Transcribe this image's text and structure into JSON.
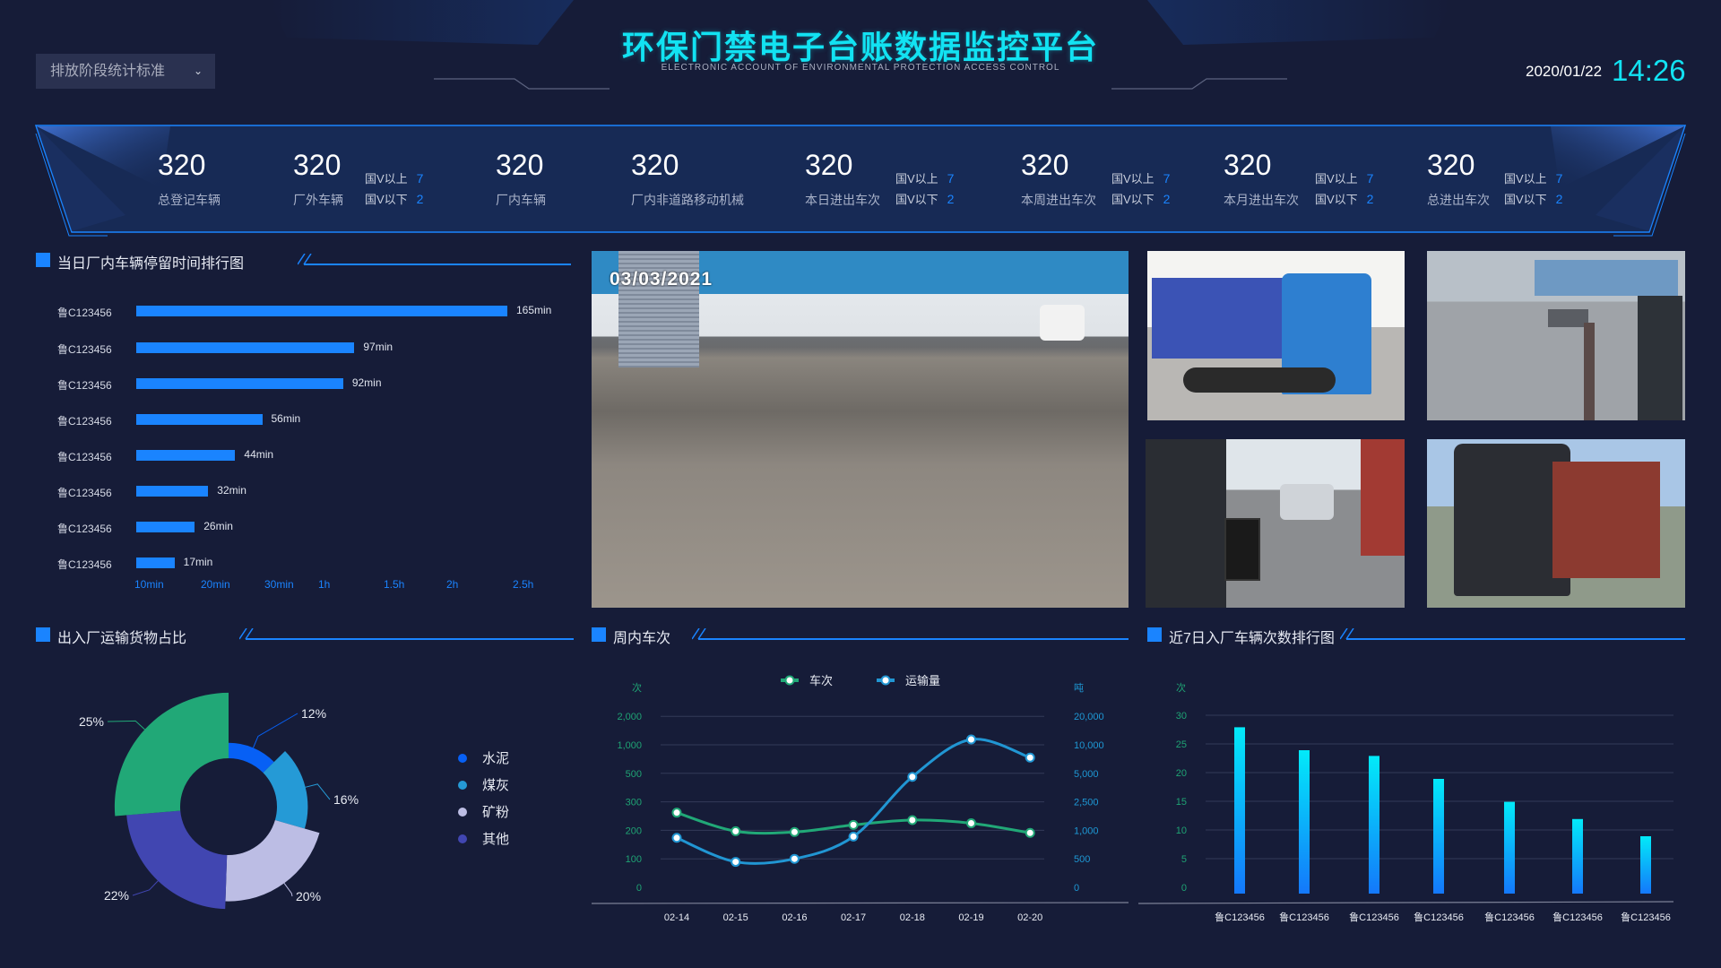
{
  "header": {
    "title": "环保门禁电子台账数据监控平台",
    "subtitle": "ELECTRONIC ACCOUNT OF ENVIRONMENTAL PROTECTION ACCESS CONTROL",
    "date": "2020/01/22",
    "time": "14:26",
    "dropdown": {
      "selected": "排放阶段统计标准",
      "icon": "chevron-down-icon"
    }
  },
  "stats": [
    {
      "value": "320",
      "label": "总登记车辆"
    },
    {
      "value": "320",
      "label": "厂外车辆",
      "above_label": "国V以上",
      "above": "7",
      "below_label": "国V以下",
      "below": "2"
    },
    {
      "value": "320",
      "label": "厂内车辆"
    },
    {
      "value": "320",
      "label": "厂内非道路移动机械"
    },
    {
      "value": "320",
      "label": "本日进出车次",
      "above_label": "国V以上",
      "above": "7",
      "below_label": "国V以下",
      "below": "2"
    },
    {
      "value": "320",
      "label": "本周进出车次",
      "above_label": "国V以上",
      "above": "7",
      "below_label": "国V以下",
      "below": "2"
    },
    {
      "value": "320",
      "label": "本月进出车次",
      "above_label": "国V以上",
      "above": "7",
      "below_label": "国V以下",
      "below": "2"
    },
    {
      "value": "320",
      "label": "总进出车次",
      "above_label": "国V以上",
      "above": "7",
      "below_label": "国V以下",
      "below": "2"
    }
  ],
  "video": {
    "timestamp": "03/03/2021"
  },
  "colors": {
    "background": "#161c38",
    "accent": "#1a84ff",
    "title": "#12e2f2",
    "green": "#21a877",
    "blue_line": "#2196d3"
  },
  "chart_data": [
    {
      "type": "bar",
      "orientation": "horizontal",
      "title": "当日厂内车辆停留时间排行图",
      "categories": [
        "鲁C123456",
        "鲁C123456",
        "鲁C123456",
        "鲁C123456",
        "鲁C123456",
        "鲁C123456",
        "鲁C123456",
        "鲁C123456"
      ],
      "values": [
        165,
        97,
        92,
        56,
        44,
        32,
        26,
        17
      ],
      "value_labels": [
        "165min",
        "97min",
        "92min",
        "56min",
        "44min",
        "32min",
        "26min",
        "17min"
      ],
      "x_tick_labels": [
        "10min",
        "20min",
        "30min",
        "1h",
        "1.5h",
        "2h",
        "2.5h"
      ],
      "unit": "min"
    },
    {
      "type": "pie",
      "title": "出入厂运输货物占比",
      "rose": true,
      "slices": [
        {
          "name": "水泥",
          "value": 12,
          "label": "12%",
          "color": "#0760f5"
        },
        {
          "name": "煤灰",
          "value": 16,
          "label": "16%",
          "color": "#259ad6"
        },
        {
          "name": "矿粉",
          "value": 20,
          "label": "20%",
          "color": "#bcbde4"
        },
        {
          "name": "其他",
          "value": 22,
          "label": "22%",
          "color": "#4146b1"
        },
        {
          "name": "",
          "value": 25,
          "label": "25%",
          "color": "#21a877"
        }
      ],
      "legend": [
        "水泥",
        "煤灰",
        "矿粉",
        "其他"
      ],
      "legend_placement": "right"
    },
    {
      "type": "line",
      "title": "周内车次",
      "x": [
        "02-14",
        "02-15",
        "02-16",
        "02-17",
        "02-18",
        "02-19",
        "02-20"
      ],
      "y_left": {
        "unit": "次",
        "ticks": [
          0,
          100,
          200,
          300,
          500,
          1000,
          2000
        ],
        "tick_labels": [
          "0",
          "100",
          "200",
          "300",
          "500",
          "1,000",
          "2,000"
        ]
      },
      "y_right": {
        "unit": "吨",
        "ticks": [
          0,
          500,
          1000,
          2500,
          5000,
          10000,
          20000
        ],
        "tick_labels": [
          "0",
          "500",
          "1,000",
          "2,500",
          "5,000",
          "10,000",
          "20,000"
        ]
      },
      "series": [
        {
          "name": "车次",
          "axis": "left",
          "color": "#21a877",
          "values": [
            262,
            197,
            194,
            219,
            236,
            225,
            191
          ]
        },
        {
          "name": "运输量",
          "axis": "right",
          "color": "#2196d3",
          "values": [
            868,
            447,
            500,
            890,
            4688,
            11875,
            7760
          ]
        }
      ],
      "legend_placement": "top",
      "grid": true,
      "smooth": true
    },
    {
      "type": "bar",
      "title": "近7日入厂车辆次数排行图",
      "categories": [
        "鲁C123456",
        "鲁C123456",
        "鲁C123456",
        "鲁C123456",
        "鲁C123456",
        "鲁C123456",
        "鲁C123456"
      ],
      "values": [
        29,
        25,
        24,
        20,
        16,
        13,
        10
      ],
      "y_unit": "次",
      "ylim": [
        0,
        30
      ],
      "y_tick_labels": [
        "0",
        "5",
        "10",
        "15",
        "20",
        "25",
        "30"
      ],
      "grid": true
    }
  ]
}
